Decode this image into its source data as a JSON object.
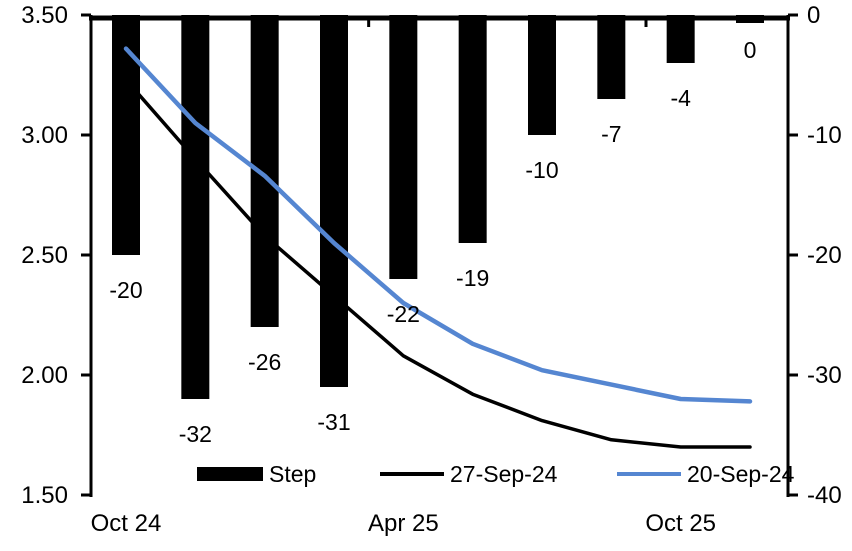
{
  "chart_data": {
    "type": "combo-bar-line",
    "title": "",
    "n_points": 10,
    "x_axis": {
      "labels": [
        {
          "text": "Oct 24",
          "index": 0
        },
        {
          "text": "Apr 25",
          "index": 4
        },
        {
          "text": "Oct 25",
          "index": 8
        }
      ],
      "minor_tick_boundaries": [
        3.5,
        7.5
      ],
      "axis_position": "top"
    },
    "left_axis": {
      "min": 1.5,
      "max": 3.5,
      "tick_labels": [
        "3.50",
        "3.00",
        "2.50",
        "2.00",
        "1.50"
      ],
      "tick_values": [
        3.5,
        3.0,
        2.5,
        2.0,
        1.5
      ]
    },
    "right_axis": {
      "min": -40,
      "max": 0,
      "tick_labels": [
        "0",
        "-10",
        "-20",
        "-30",
        "-40"
      ],
      "tick_values": [
        0,
        -10,
        -20,
        -30,
        -40
      ]
    },
    "series": [
      {
        "name": "Step",
        "type": "bar",
        "axis": "right",
        "color": "#000000",
        "values": [
          -20,
          -32,
          -26,
          -31,
          -22,
          -19,
          -10,
          -7,
          -4,
          0
        ],
        "data_labels": [
          "-20",
          "-32",
          "-26",
          "-31",
          "-22",
          "-19",
          "-10",
          "-7",
          "-4",
          "0"
        ]
      },
      {
        "name": "27-Sep-24",
        "type": "line",
        "axis": "left",
        "color": "#000000",
        "values": [
          3.23,
          2.9,
          2.58,
          2.33,
          2.08,
          1.92,
          1.81,
          1.73,
          1.7,
          1.7
        ]
      },
      {
        "name": "20-Sep-24",
        "type": "line",
        "axis": "left",
        "color": "#5586D1",
        "values": [
          3.36,
          3.05,
          2.83,
          2.55,
          2.3,
          2.13,
          2.02,
          1.96,
          1.9,
          1.89
        ]
      }
    ],
    "legend": {
      "position": "bottom",
      "items": [
        {
          "label": "Step",
          "swatch": "bar",
          "color": "#000000"
        },
        {
          "label": "27-Sep-24",
          "swatch": "line",
          "color": "#000000"
        },
        {
          "label": "20-Sep-24",
          "swatch": "line",
          "color": "#5586D1"
        }
      ]
    },
    "grid": "off"
  }
}
